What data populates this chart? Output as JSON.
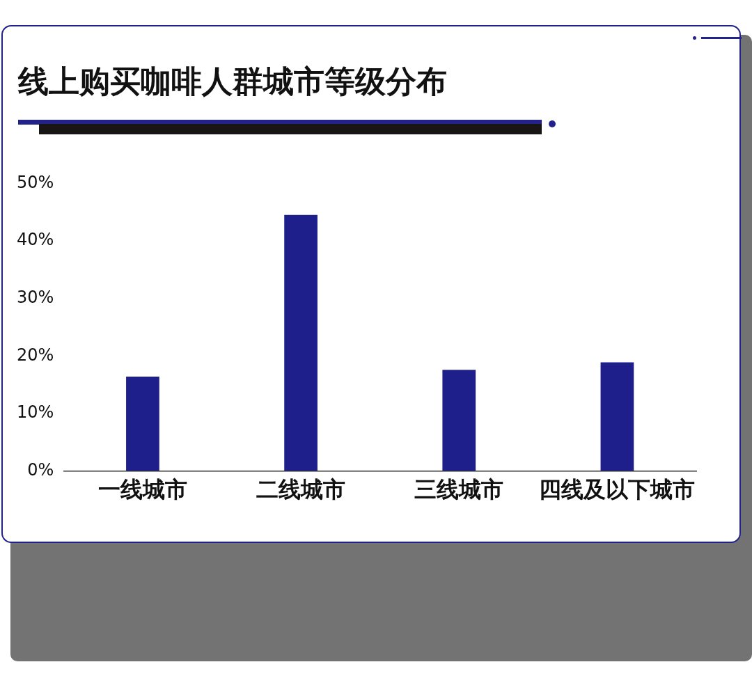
{
  "chart_data": {
    "type": "bar",
    "title": "线上购买咖啡人群城市等级分布",
    "categories": [
      "一线城市",
      "二线城市",
      "三线城市",
      "四线及以下城市"
    ],
    "values": [
      16.4,
      44.5,
      17.6,
      18.9
    ],
    "color": "#1f1f8c",
    "ylim": [
      0,
      50
    ],
    "yticks": [
      {
        "value": 0,
        "label": "0%"
      },
      {
        "value": 10,
        "label": "10%"
      },
      {
        "value": 20,
        "label": "20%"
      },
      {
        "value": 30,
        "label": "30%"
      },
      {
        "value": 40,
        "label": "40%"
      },
      {
        "value": 50,
        "label": "50%"
      }
    ],
    "grid": false,
    "legend": false
  }
}
